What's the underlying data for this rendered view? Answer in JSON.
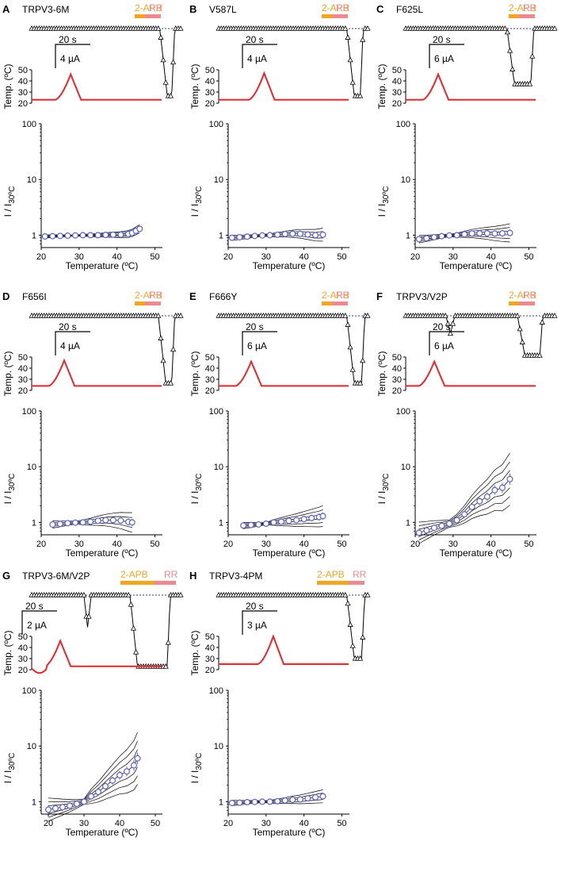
{
  "colors": {
    "agonist_bar": "#f0a623",
    "blocker_bar": "#ec8a8f",
    "temperature_trace": "#e8262b",
    "mean_marker": "#5b62c9",
    "baseline_dotted": "#2b3fa8"
  },
  "common": {
    "agonist_label": "2-APB",
    "blocker_label": "RR",
    "time_scale_label": "20 s",
    "temp_axis_label": "Temp. (ºC)",
    "temp_ticks": [
      "50",
      "40",
      "30",
      "20"
    ],
    "ratio_axis_label_main": "I / I",
    "ratio_axis_label_sub": "30ºC",
    "ratio_ticks": [
      "100",
      "10",
      "1"
    ],
    "x_axis_label": "Temperature (ºC)",
    "x_ticks": [
      "20",
      "30",
      "40",
      "50"
    ]
  },
  "chart_data": [
    {
      "panel": "A",
      "title": "TRPV3-6M",
      "type": "scatter",
      "current_scale_label": "4 µA",
      "xlabel": "Temperature (ºC)",
      "ylabel": "I / I30ºC",
      "yscale": "log",
      "xlim": [
        20,
        52
      ],
      "ylim": [
        0.6,
        100
      ],
      "x": [
        21,
        23,
        25,
        27,
        29,
        31,
        33,
        35,
        37,
        39,
        41,
        43,
        44,
        45,
        46
      ],
      "y": [
        0.95,
        0.96,
        0.97,
        0.98,
        0.99,
        1.0,
        1.0,
        1.0,
        1.01,
        1.02,
        1.02,
        1.05,
        1.1,
        1.2,
        1.3
      ],
      "spread": 0.03,
      "n_traces": 6,
      "temp_peak_c": 46,
      "temp_baseline_c": 23
    },
    {
      "panel": "B",
      "title": "V587L",
      "type": "scatter",
      "current_scale_label": "4 µA",
      "xlabel": "Temperature (ºC)",
      "ylabel": "I / I30ºC",
      "yscale": "log",
      "xlim": [
        20,
        52
      ],
      "ylim": [
        0.6,
        100
      ],
      "x": [
        21,
        23,
        25,
        27,
        29,
        31,
        33,
        35,
        37,
        39,
        41,
        43,
        45
      ],
      "y": [
        0.9,
        0.92,
        0.94,
        0.97,
        0.99,
        1.0,
        1.02,
        1.05,
        1.06,
        1.06,
        1.03,
        1.0,
        1.02
      ],
      "spread": 0.05,
      "n_traces": 5,
      "temp_peak_c": 47,
      "temp_baseline_c": 23
    },
    {
      "panel": "C",
      "title": "F625L",
      "type": "scatter",
      "current_scale_label": "6 µA",
      "xlabel": "Temperature (ºC)",
      "ylabel": "I / I30ºC",
      "yscale": "log",
      "xlim": [
        20,
        52
      ],
      "ylim": [
        0.6,
        100
      ],
      "x": [
        21,
        23,
        25,
        27,
        29,
        31,
        33,
        35,
        37,
        39,
        41,
        43,
        45
      ],
      "y": [
        0.85,
        0.88,
        0.92,
        0.96,
        0.99,
        1.0,
        1.04,
        1.07,
        1.08,
        1.08,
        1.07,
        1.08,
        1.1
      ],
      "spread": 0.07,
      "n_traces": 6,
      "temp_peak_c": 46,
      "temp_baseline_c": 23
    },
    {
      "panel": "D",
      "title": "F656I",
      "type": "scatter",
      "current_scale_label": "4 µA",
      "xlabel": "Temperature (ºC)",
      "ylabel": "I / I30ºC",
      "yscale": "log",
      "xlim": [
        20,
        52
      ],
      "ylim": [
        0.6,
        100
      ],
      "x": [
        23,
        25,
        27,
        29,
        31,
        33,
        35,
        37,
        39,
        41,
        43,
        44
      ],
      "y": [
        0.92,
        0.94,
        0.97,
        0.99,
        1.0,
        1.03,
        1.07,
        1.1,
        1.1,
        1.08,
        1.02,
        1.0
      ],
      "spread": 0.08,
      "n_traces": 5,
      "temp_peak_c": 47,
      "temp_baseline_c": 24
    },
    {
      "panel": "E",
      "title": "F666Y",
      "type": "scatter",
      "current_scale_label": "6 µA",
      "xlabel": "Temperature (ºC)",
      "ylabel": "I / I30ºC",
      "yscale": "log",
      "xlim": [
        20,
        52
      ],
      "ylim": [
        0.6,
        100
      ],
      "x": [
        24,
        26,
        28,
        30,
        32,
        34,
        36,
        38,
        40,
        42,
        44,
        45
      ],
      "y": [
        0.88,
        0.9,
        0.92,
        0.95,
        1.0,
        1.03,
        1.07,
        1.1,
        1.15,
        1.2,
        1.25,
        1.3
      ],
      "spread": 0.08,
      "n_traces": 6,
      "temp_peak_c": 46,
      "temp_baseline_c": 24
    },
    {
      "panel": "F",
      "title": "TRPV3/V2P",
      "type": "scatter",
      "current_scale_label": "6 µA",
      "xlabel": "Temperature (ºC)",
      "ylabel": "I / I30ºC",
      "yscale": "log",
      "xlim": [
        20,
        52
      ],
      "ylim": [
        0.6,
        100
      ],
      "x": [
        21,
        23,
        25,
        27,
        29,
        31,
        33,
        35,
        37,
        39,
        41,
        43,
        45
      ],
      "y": [
        0.65,
        0.72,
        0.8,
        0.87,
        0.95,
        1.1,
        1.4,
        1.9,
        2.4,
        2.9,
        3.8,
        4.2,
        6.0
      ],
      "spread": 0.2,
      "n_traces": 7,
      "temp_peak_c": 46,
      "temp_baseline_c": 24
    },
    {
      "panel": "G",
      "title": "TRPV3-6M/V2P",
      "type": "scatter",
      "current_scale_label": "2 µA",
      "xlabel": "Temperature (ºC)",
      "ylabel": "I / I30ºC",
      "yscale": "log",
      "xlim": [
        18,
        52
      ],
      "ylim": [
        0.6,
        100
      ],
      "x": [
        20,
        22,
        24,
        26,
        28,
        30,
        32,
        34,
        36,
        38,
        40,
        42,
        44,
        45
      ],
      "y": [
        0.72,
        0.76,
        0.8,
        0.85,
        0.92,
        1.0,
        1.25,
        1.5,
        1.9,
        2.4,
        3.0,
        3.5,
        4.5,
        6.0
      ],
      "spread": 0.2,
      "n_traces": 7,
      "temp_peak_c": 46,
      "temp_baseline_c": 23
    },
    {
      "panel": "H",
      "title": "TRPV3-4PM",
      "type": "scatter",
      "current_scale_label": "3 µA",
      "xlabel": "Temperature (ºC)",
      "ylabel": "I / I30ºC",
      "yscale": "log",
      "xlim": [
        20,
        52
      ],
      "ylim": [
        0.6,
        100
      ],
      "x": [
        21,
        23,
        25,
        27,
        29,
        31,
        33,
        35,
        37,
        39,
        41,
        43,
        45
      ],
      "y": [
        0.95,
        0.96,
        0.98,
        0.99,
        1.0,
        1.0,
        1.02,
        1.05,
        1.08,
        1.1,
        1.15,
        1.2,
        1.25
      ],
      "spread": 0.05,
      "n_traces": 5,
      "temp_peak_c": 50,
      "temp_baseline_c": 25
    }
  ]
}
